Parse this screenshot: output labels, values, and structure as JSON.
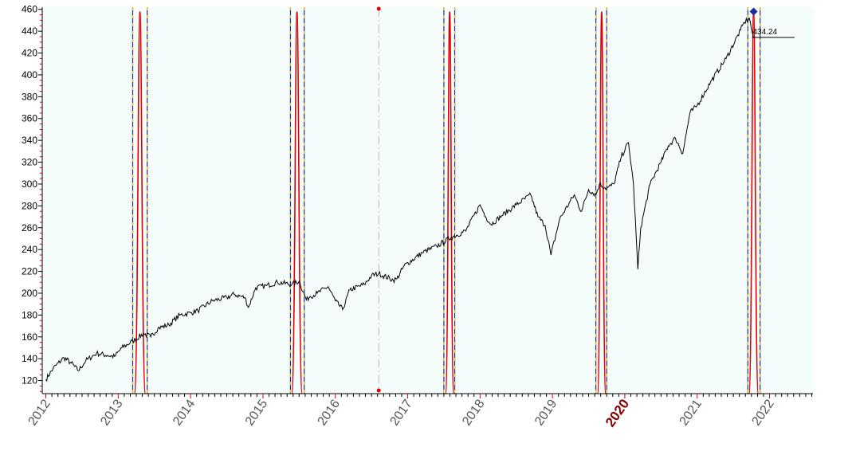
{
  "colors": {
    "background": "#ffffff",
    "plot_background": "#f5fdfc",
    "price_line": "#000000",
    "cycle_peak": "#e00000",
    "cycle_boundary": "#1a2aa0",
    "cycle_dash": "#f2c200",
    "highlight_year": "#8b0000",
    "year_label": "#555555",
    "marker_red": "#e00000",
    "marker_blue": "#1a2aa0"
  },
  "chart_data": {
    "type": "line",
    "title": "",
    "xlabel": "",
    "ylabel": "",
    "xlim": [
      2011.95,
      2022.6
    ],
    "ylim": [
      108,
      462
    ],
    "grid": false,
    "y_ticks": [
      120,
      140,
      160,
      180,
      200,
      220,
      240,
      260,
      280,
      300,
      320,
      340,
      360,
      380,
      400,
      420,
      440,
      460
    ],
    "x_ticks": [
      "2012",
      "2013",
      "2014",
      "2015",
      "2016",
      "2017",
      "2018",
      "2019",
      "2020",
      "2021",
      "2022"
    ],
    "x_tick_values": [
      2012,
      2013,
      2014,
      2015,
      2016,
      2017,
      2018,
      2019,
      2020,
      2021,
      2022
    ],
    "highlighted_tick": "2020",
    "series": [
      {
        "x": [
          2012.0,
          2012.1,
          2012.25,
          2012.35,
          2012.45,
          2012.55,
          2012.7,
          2012.85,
          2012.95,
          2013.05,
          2013.2,
          2013.35,
          2013.45,
          2013.55,
          2013.7,
          2013.85,
          2014.0,
          2014.1,
          2014.3,
          2014.5,
          2014.6,
          2014.75,
          2014.8,
          2014.9,
          2015.05,
          2015.2,
          2015.4,
          2015.5,
          2015.6,
          2015.65,
          2015.75,
          2015.9,
          2016.0,
          2016.1,
          2016.2,
          2016.4,
          2016.5,
          2016.6,
          2016.8,
          2016.85,
          2016.95,
          2017.2,
          2017.4,
          2017.6,
          2017.8,
          2018.0,
          2018.08,
          2018.15,
          2018.3,
          2018.5,
          2018.7,
          2018.8,
          2018.9,
          2018.98,
          2019.1,
          2019.3,
          2019.4,
          2019.5,
          2019.6,
          2019.65,
          2019.75,
          2019.85,
          2019.95,
          2020.05,
          2020.12,
          2020.18,
          2020.22,
          2020.35,
          2020.5,
          2020.6,
          2020.7,
          2020.8,
          2020.9,
          2021.0,
          2021.2,
          2021.4,
          2021.6,
          2021.65,
          2021.72,
          2021.75,
          2021.78
        ],
        "y": [
          121,
          131,
          141,
          136,
          129,
          138,
          145,
          143,
          142,
          150,
          156,
          163,
          160,
          168,
          171,
          180,
          182,
          184,
          193,
          196,
          199,
          196,
          187,
          205,
          207,
          210,
          208,
          211,
          194,
          197,
          200,
          206,
          193,
          185,
          203,
          208,
          216,
          218,
          212,
          213,
          225,
          237,
          243,
          251,
          257,
          281,
          270,
          263,
          271,
          281,
          290,
          270,
          262,
          235,
          268,
          290,
          275,
          295,
          290,
          300,
          296,
          300,
          325,
          338,
          300,
          222,
          260,
          300,
          320,
          335,
          342,
          328,
          365,
          372,
          395,
          415,
          441,
          448,
          452,
          442,
          434
        ]
      }
    ],
    "cycle_windows": [
      {
        "start": 2013.2,
        "peak": 2013.3,
        "end": 2013.4
      },
      {
        "start": 2015.38,
        "peak": 2015.47,
        "end": 2015.57
      },
      {
        "start": 2017.5,
        "peak": 2017.58,
        "end": 2017.65
      },
      {
        "start": 2019.6,
        "peak": 2019.68,
        "end": 2019.75
      },
      {
        "start": 2021.7,
        "peak": 2021.78,
        "end": 2021.87
      }
    ],
    "divider_x": 2016.6,
    "last_value_label": "434.24",
    "last_value": 434.24
  }
}
